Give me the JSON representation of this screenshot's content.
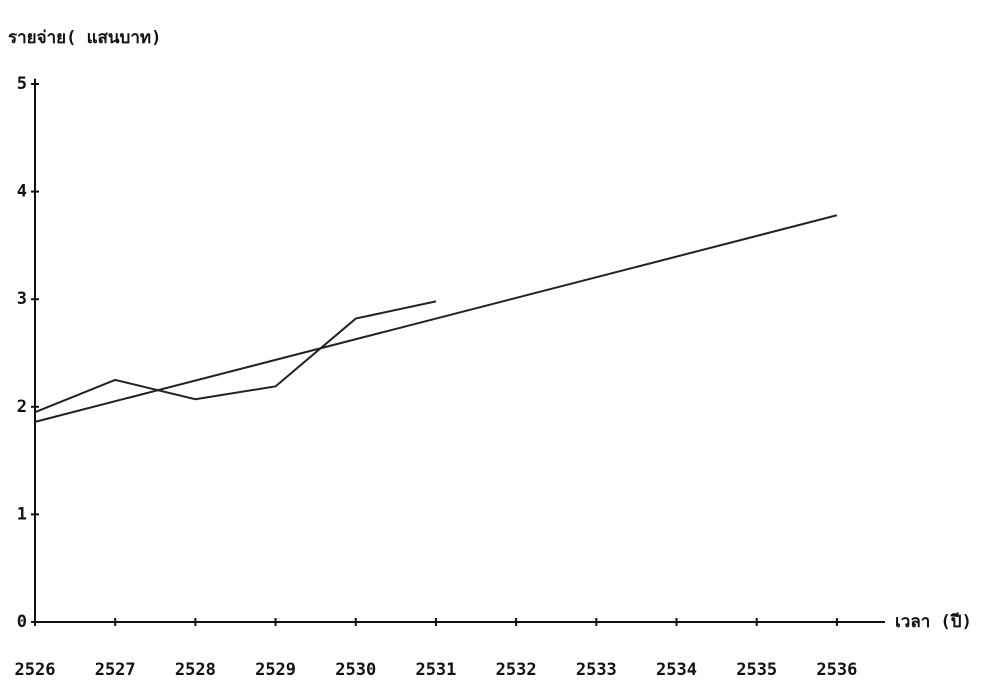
{
  "chart_data": {
    "type": "line",
    "y_label": "รายจ่าย( แสนบาท)",
    "x_label": "เวลา (ปี)",
    "series": [
      {
        "color": "#222222",
        "x": [
          2526,
          2527,
          2528,
          2529,
          2530,
          2531
        ],
        "values": [
          1.95,
          2.25,
          2.07,
          2.19,
          2.82,
          2.98
        ]
      },
      {
        "color": "#222222",
        "x": [
          2526,
          2536
        ],
        "values": [
          1.86,
          3.78
        ]
      }
    ],
    "xlim": [
      2526,
      2536.6
    ],
    "xticks": [
      2526,
      2527,
      2528,
      2529,
      2530,
      2531,
      2532,
      2533,
      2534,
      2535,
      2536
    ],
    "ylim": [
      0,
      5.05
    ],
    "yticks": [
      0,
      1,
      2,
      3,
      4,
      5
    ]
  }
}
